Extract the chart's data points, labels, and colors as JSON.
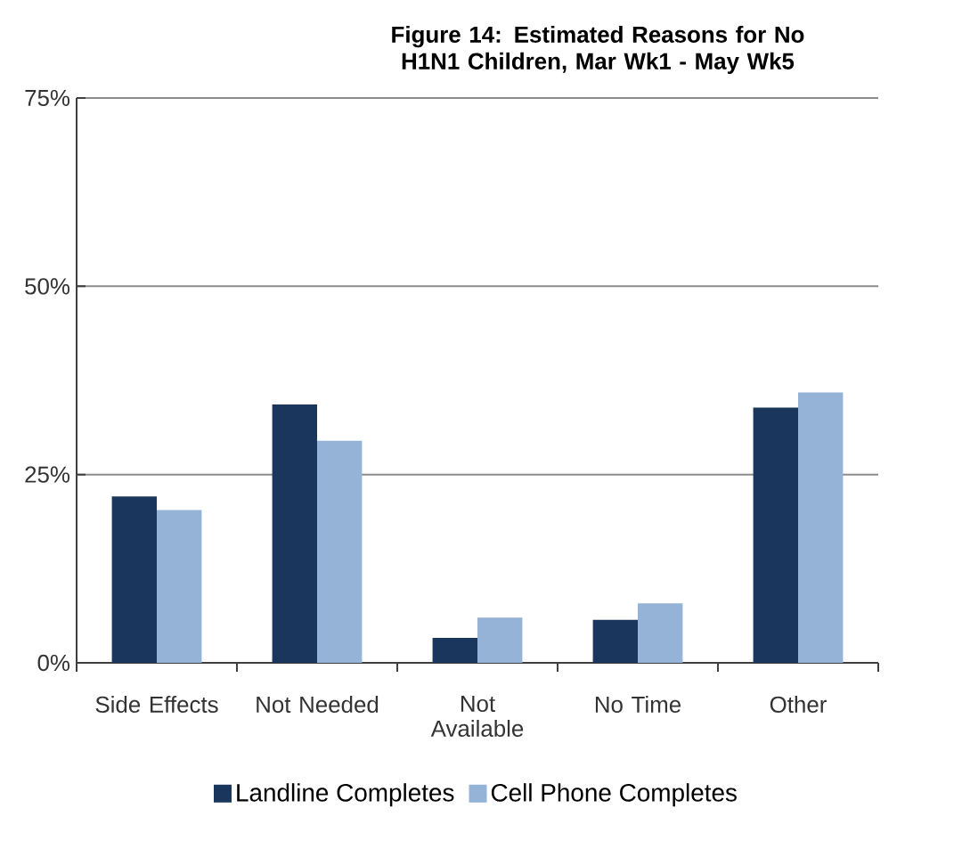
{
  "chart_data": {
    "type": "bar",
    "title": "Figure 14: Estimated Reasons for No H1N1 Children, Mar Wk1 - May Wk5",
    "categories": [
      "Side Effects",
      "Not Needed",
      "Not Available",
      "No Time",
      "Other"
    ],
    "series": [
      {
        "name": "Landline Completes",
        "color": "#1b365d",
        "values": [
          22.1,
          34.3,
          3.3,
          5.7,
          33.9
        ]
      },
      {
        "name": "Cell Phone Completes",
        "color": "#95b3d7",
        "values": [
          20.3,
          29.5,
          6.0,
          7.9,
          35.9
        ]
      }
    ],
    "ylim": [
      0,
      75
    ],
    "yticks": [
      {
        "value": 0,
        "label": "0%"
      },
      {
        "value": 25,
        "label": "25%"
      },
      {
        "value": 50,
        "label": "50%"
      },
      {
        "value": 75,
        "label": "75%"
      }
    ],
    "grid": "y",
    "legend": "bottom"
  }
}
